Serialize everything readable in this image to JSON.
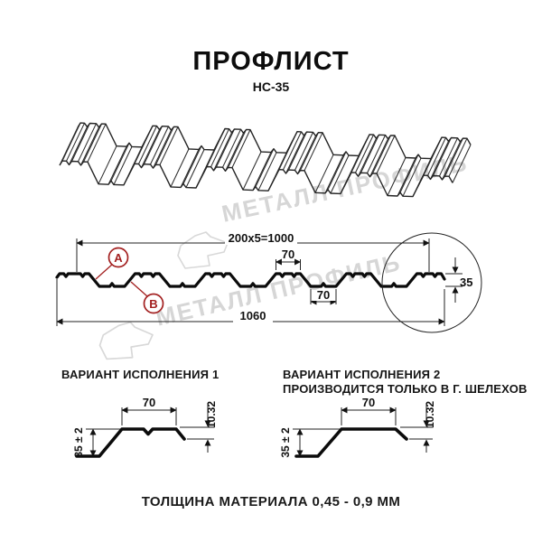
{
  "title": {
    "main": "ПРОФЛИСТ",
    "model": "НС-35"
  },
  "watermark": {
    "text": "МЕТАЛЛ ПРОФИЛЬ",
    "color": "#d6d6d6"
  },
  "cross_section": {
    "callout_a": "А",
    "callout_b": "В",
    "dim_top_total": "200x5=1000",
    "dim_crest_width": "70",
    "dim_valley_width": "70",
    "dim_overall_width": "1060",
    "dim_height": "35"
  },
  "variant1": {
    "heading": "ВАРИАНТ ИСПОЛНЕНИЯ 1",
    "dim_top": "70",
    "dim_drop": "10.32",
    "dim_height": "35 ± 2"
  },
  "variant2": {
    "heading": "ВАРИАНТ ИСПОЛНЕНИЯ 2",
    "subheading": "ПРОИЗВОДИТСЯ ТОЛЬКО В Г. ШЕЛЕХОВ",
    "dim_top": "70",
    "dim_drop": "10.32",
    "dim_height": "35 ± 2"
  },
  "footer": "ТОЛЩИНА МАТЕРИАЛА 0,45 - 0,9 ММ",
  "colors": {
    "line": "#1a1a1a",
    "accent": "#a32020",
    "watermark": "#d6d6d6"
  }
}
